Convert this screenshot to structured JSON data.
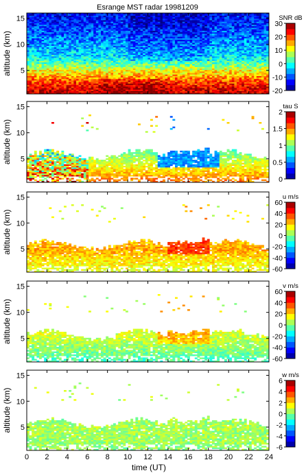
{
  "figure": {
    "title": "Esrange MST radar 19981209",
    "xlabel": "time (UT)"
  },
  "chart_data": [
    {
      "type": "heatmap",
      "quantity": "SNR",
      "colorbar_label": "SNR dB",
      "ylabel": "altitude (km)",
      "x_range": [
        0,
        24
      ],
      "y_range": [
        0.5,
        16
      ],
      "y_ticks": [
        5,
        10,
        15
      ],
      "color_range": [
        -20,
        30
      ],
      "color_ticks": [
        -20,
        -10,
        0,
        10,
        20,
        30
      ],
      "colormap": "jet",
      "coverage": "full",
      "profile": [
        {
          "alt": 1,
          "value": 26
        },
        {
          "alt": 2,
          "value": 24
        },
        {
          "alt": 3,
          "value": 20
        },
        {
          "alt": 4,
          "value": 15
        },
        {
          "alt": 5,
          "value": 11
        },
        {
          "alt": 6,
          "value": 5
        },
        {
          "alt": 7,
          "value": 0
        },
        {
          "alt": 8,
          "value": -3
        },
        {
          "alt": 10,
          "value": -6
        },
        {
          "alt": 12,
          "value": -9
        },
        {
          "alt": 14,
          "value": -12
        },
        {
          "alt": 16,
          "value": -14
        }
      ]
    },
    {
      "type": "heatmap",
      "quantity": "tau",
      "colorbar_label": "tau S",
      "ylabel": "altitude (km)",
      "x_range": [
        0,
        24
      ],
      "y_range": [
        0.5,
        16
      ],
      "y_ticks": [
        5,
        10,
        15
      ],
      "color_range": [
        0,
        2
      ],
      "color_ticks": [
        0,
        0.5,
        1,
        1.5,
        2
      ],
      "colormap": "jet",
      "coverage": "lower",
      "profile": [
        {
          "alt": 1,
          "value": 1.5
        },
        {
          "alt": 3,
          "value": 1.3
        },
        {
          "alt": 5,
          "value": 1.1
        },
        {
          "alt": 7,
          "value": 0.9
        },
        {
          "alt": 13,
          "value": 1.4
        }
      ]
    },
    {
      "type": "heatmap",
      "quantity": "u",
      "colorbar_label": "u m/s",
      "ylabel": "altitude (km)",
      "x_range": [
        0,
        24
      ],
      "y_range": [
        0.5,
        16
      ],
      "y_ticks": [
        5,
        10,
        15
      ],
      "color_range": [
        -60,
        60
      ],
      "color_ticks": [
        -60,
        -40,
        -20,
        0,
        20,
        40,
        60
      ],
      "colormap": "jet",
      "coverage": "lower",
      "profile": [
        {
          "alt": 1,
          "value": 12
        },
        {
          "alt": 3,
          "value": 18
        },
        {
          "alt": 5,
          "value": 26
        },
        {
          "alt": 7,
          "value": 20
        },
        {
          "alt": 13,
          "value": 10
        }
      ]
    },
    {
      "type": "heatmap",
      "quantity": "v",
      "colorbar_label": "v m/s",
      "ylabel": "altitude (km)",
      "x_range": [
        0,
        24
      ],
      "y_range": [
        0.5,
        16
      ],
      "y_ticks": [
        5,
        10,
        15
      ],
      "color_range": [
        -60,
        60
      ],
      "color_ticks": [
        -60,
        -40,
        -20,
        0,
        20,
        40,
        60
      ],
      "colormap": "jet",
      "coverage": "lower",
      "profile": [
        {
          "alt": 1,
          "value": -6
        },
        {
          "alt": 3,
          "value": 2
        },
        {
          "alt": 5,
          "value": 8
        },
        {
          "alt": 7,
          "value": 12
        },
        {
          "alt": 13,
          "value": 6
        }
      ]
    },
    {
      "type": "heatmap",
      "quantity": "w",
      "colorbar_label": "w m/s",
      "ylabel": "altitude (km)",
      "x_range": [
        0,
        24
      ],
      "y_range": [
        0.5,
        16
      ],
      "y_ticks": [
        5,
        10,
        15
      ],
      "color_range": [
        -6,
        6
      ],
      "color_ticks": [
        -6,
        -4,
        -2,
        0,
        2,
        4,
        6
      ],
      "colormap": "jet",
      "coverage": "lower",
      "profile": [
        {
          "alt": 1,
          "value": 0.2
        },
        {
          "alt": 3,
          "value": 0.4
        },
        {
          "alt": 5,
          "value": 0.5
        },
        {
          "alt": 7,
          "value": 0.3
        },
        {
          "alt": 13,
          "value": 0.8
        }
      ]
    }
  ],
  "x_ticks": [
    0,
    2,
    4,
    6,
    8,
    10,
    12,
    14,
    16,
    18,
    20,
    22,
    24
  ]
}
